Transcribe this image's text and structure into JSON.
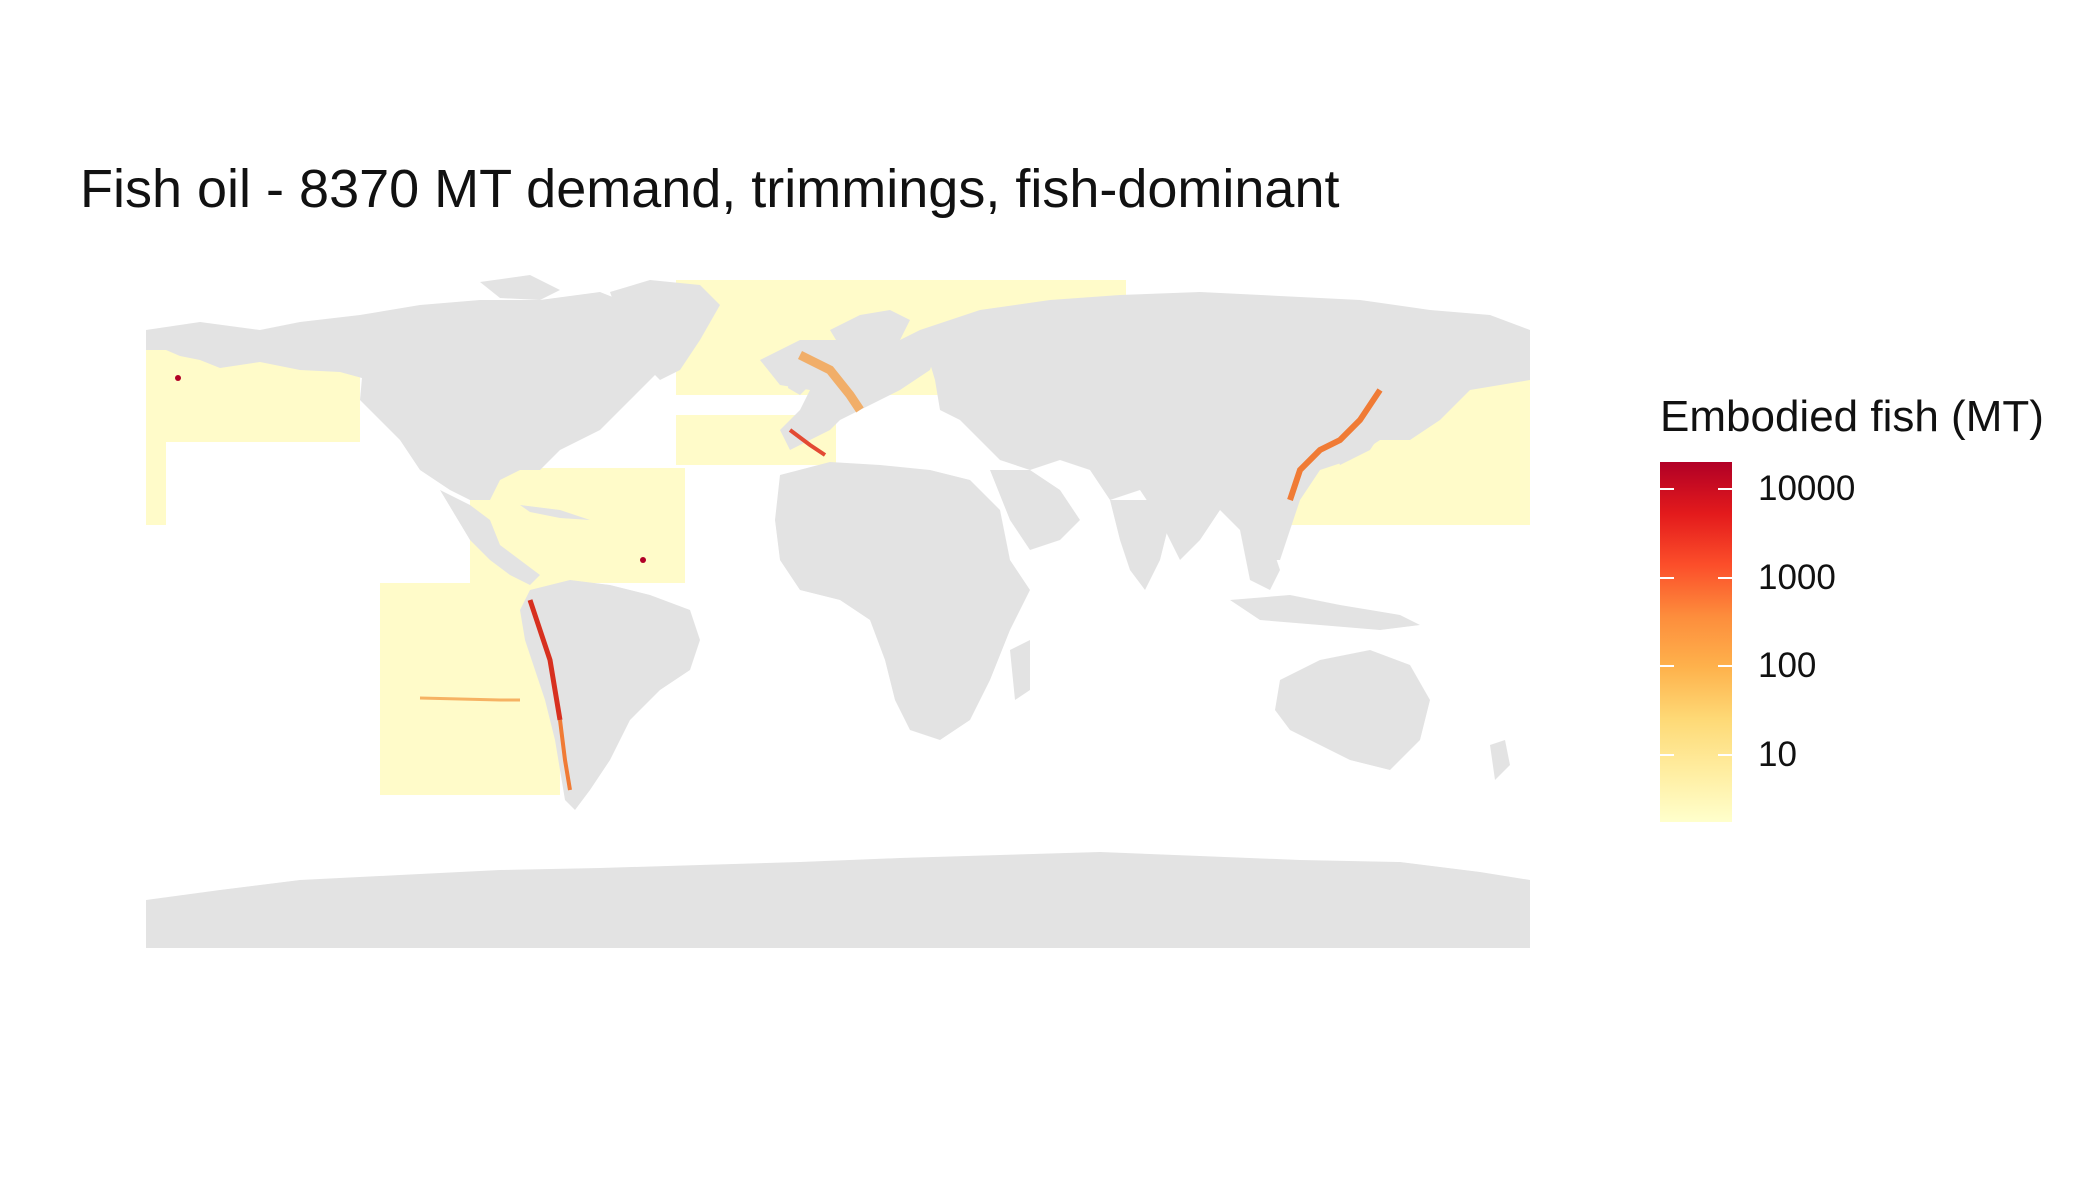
{
  "title": "Fish oil - 8370 MT demand, trimmings, fish-dominant",
  "legend": {
    "title": "Embodied fish (MT)",
    "scale": "log10",
    "colors": [
      "#ffffcc",
      "#ffeda0",
      "#fed976",
      "#feb24c",
      "#fd8d3c",
      "#fc4e2a",
      "#e31a1c",
      "#b10026"
    ],
    "breaks": [
      {
        "label": "10000",
        "value": 10000
      },
      {
        "label": "1000",
        "value": 1000
      },
      {
        "label": "100",
        "value": 100
      },
      {
        "label": "10",
        "value": 10
      }
    ]
  },
  "colors": {
    "land": "#e3e3e3",
    "ocean": "#ffffff",
    "low_catch": "#ffffcc",
    "mid_catch": "#fdd587",
    "high_catch": "#f07b35",
    "hotspot": "#b10026"
  }
}
